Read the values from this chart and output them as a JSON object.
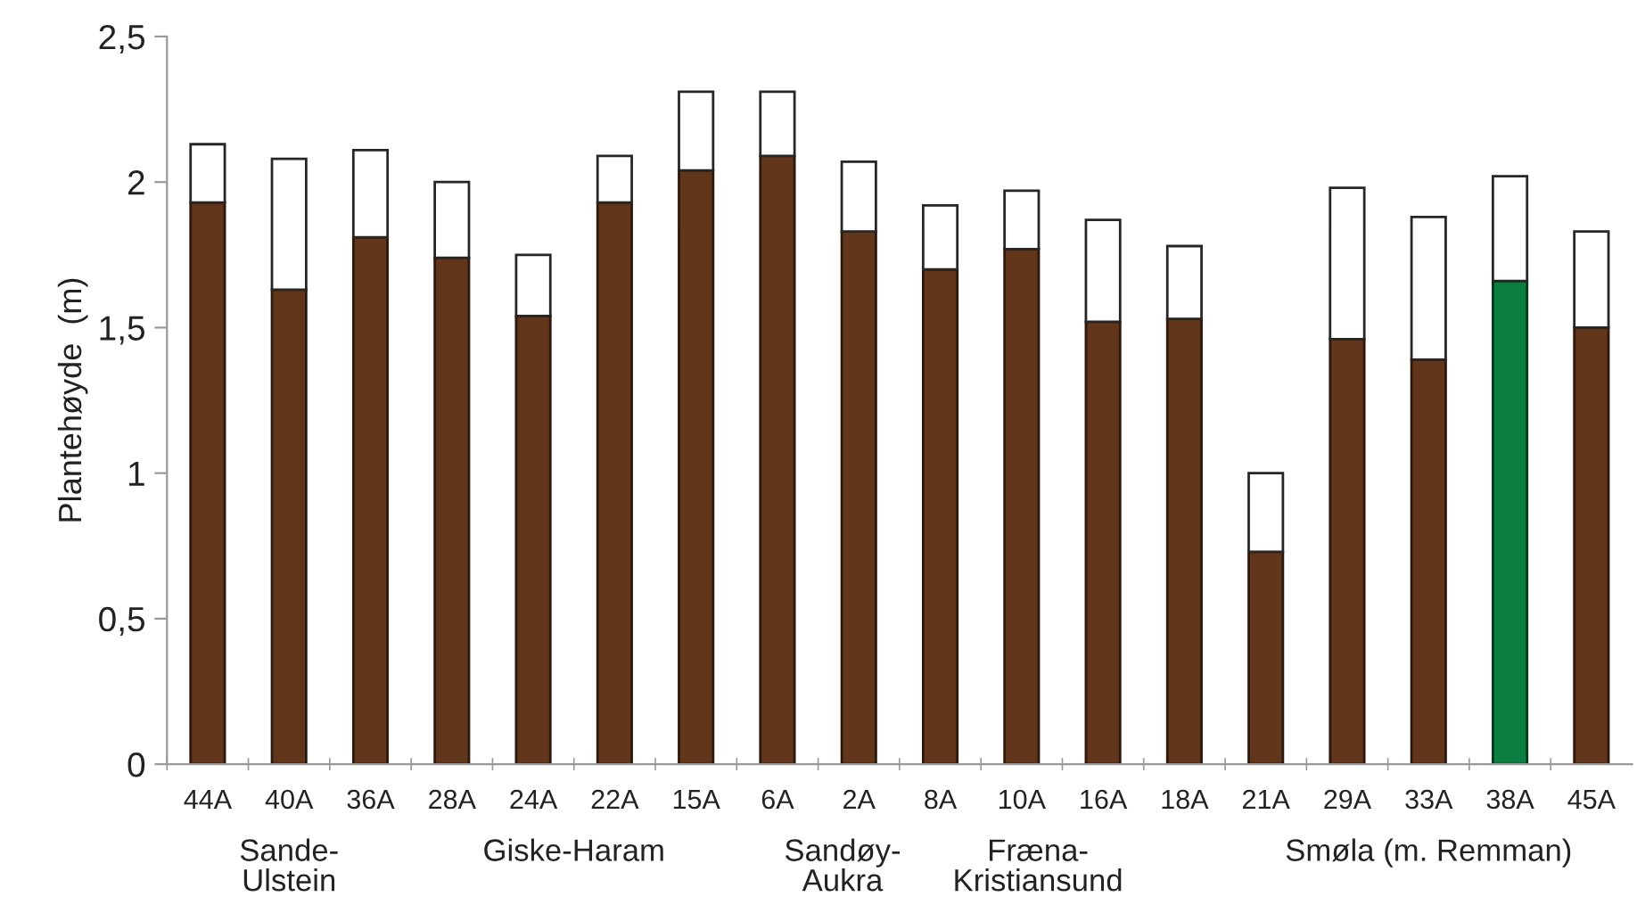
{
  "chart_data": {
    "type": "bar",
    "stacked": true,
    "ylabel": "Plantehøyde  (m)",
    "categories": [
      "44A",
      "40A",
      "36A",
      "28A",
      "24A",
      "22A",
      "15A",
      "6A",
      "2A",
      "8A",
      "10A",
      "16A",
      "18A",
      "21A",
      "29A",
      "33A",
      "38A",
      "45A"
    ],
    "series": [
      {
        "colors": [
          "#62361a",
          "#62361a",
          "#62361a",
          "#62361a",
          "#62361a",
          "#62361a",
          "#62361a",
          "#62361a",
          "#62361a",
          "#62361a",
          "#62361a",
          "#62361a",
          "#62361a",
          "#62361a",
          "#62361a",
          "#62361a",
          "#0a7f3f",
          "#62361a"
        ],
        "values": [
          1.93,
          1.63,
          1.81,
          1.74,
          1.54,
          1.93,
          2.04,
          2.09,
          1.83,
          1.7,
          1.77,
          1.52,
          1.53,
          0.73,
          1.46,
          1.39,
          1.66,
          1.5
        ]
      },
      {
        "color": "#ffffff",
        "values": [
          0.2,
          0.45,
          0.3,
          0.26,
          0.21,
          0.16,
          0.27,
          0.22,
          0.24,
          0.22,
          0.2,
          0.35,
          0.25,
          0.27,
          0.52,
          0.49,
          0.36,
          0.33
        ]
      }
    ],
    "ylim": [
      0,
      2.5
    ],
    "yticks": [
      0,
      {
        "value": 0.5,
        "label": "0,5"
      },
      1,
      {
        "value": 1.5,
        "label": "1,5"
      },
      2,
      {
        "value": 2.5,
        "label": "2,5"
      }
    ],
    "annotations": [
      "Sande-\nUlstein",
      "Giske-Haram",
      "Sandøy-\nAukra",
      "Fræna-\nKristiansund",
      "Smøla (m. Remman)"
    ],
    "grid": false,
    "legend": false
  }
}
